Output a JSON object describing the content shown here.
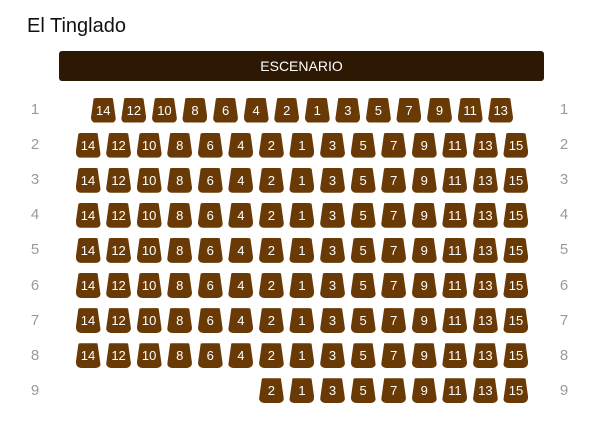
{
  "venue": {
    "title": "El Tinglado"
  },
  "stage": {
    "label": "ESCENARIO"
  },
  "colors": {
    "seat": "#6a3a06",
    "stage": "#2c1803",
    "row_label": "#9a9a9a"
  },
  "seat_order": [
    "14",
    "12",
    "10",
    "8",
    "6",
    "4",
    "2",
    "1",
    "3",
    "5",
    "7",
    "9",
    "11",
    "13",
    "15"
  ],
  "rows": [
    {
      "label": "1",
      "seats": [
        "14",
        "12",
        "10",
        "8",
        "6",
        "4",
        "2",
        "1",
        "3",
        "5",
        "7",
        "9",
        "11",
        "13"
      ]
    },
    {
      "label": "2",
      "seats": [
        "14",
        "12",
        "10",
        "8",
        "6",
        "4",
        "2",
        "1",
        "3",
        "5",
        "7",
        "9",
        "11",
        "13",
        "15"
      ]
    },
    {
      "label": "3",
      "seats": [
        "14",
        "12",
        "10",
        "8",
        "6",
        "4",
        "2",
        "1",
        "3",
        "5",
        "7",
        "9",
        "11",
        "13",
        "15"
      ]
    },
    {
      "label": "4",
      "seats": [
        "14",
        "12",
        "10",
        "8",
        "6",
        "4",
        "2",
        "1",
        "3",
        "5",
        "7",
        "9",
        "11",
        "13",
        "15"
      ]
    },
    {
      "label": "5",
      "seats": [
        "14",
        "12",
        "10",
        "8",
        "6",
        "4",
        "2",
        "1",
        "3",
        "5",
        "7",
        "9",
        "11",
        "13",
        "15"
      ]
    },
    {
      "label": "6",
      "seats": [
        "14",
        "12",
        "10",
        "8",
        "6",
        "4",
        "2",
        "1",
        "3",
        "5",
        "7",
        "9",
        "11",
        "13",
        "15"
      ]
    },
    {
      "label": "7",
      "seats": [
        "14",
        "12",
        "10",
        "8",
        "6",
        "4",
        "2",
        "1",
        "3",
        "5",
        "7",
        "9",
        "11",
        "13",
        "15"
      ]
    },
    {
      "label": "8",
      "seats": [
        "14",
        "12",
        "10",
        "8",
        "6",
        "4",
        "2",
        "1",
        "3",
        "5",
        "7",
        "9",
        "11",
        "13",
        "15"
      ]
    },
    {
      "label": "9",
      "seats": [
        "2",
        "1",
        "3",
        "5",
        "7",
        "9",
        "11",
        "13",
        "15"
      ]
    }
  ]
}
